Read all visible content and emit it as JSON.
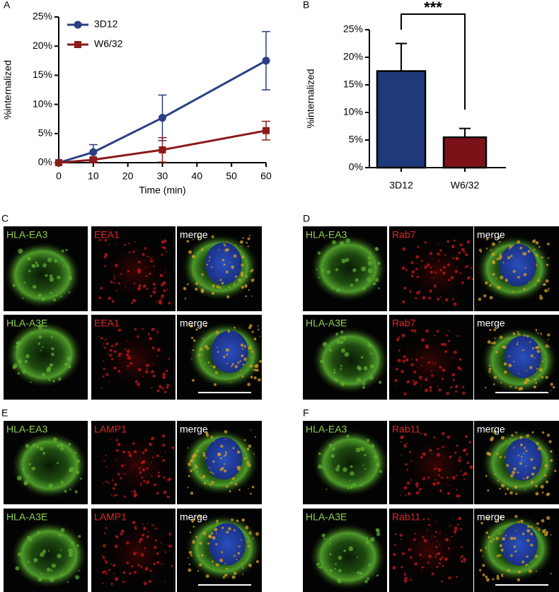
{
  "chart_data": [
    {
      "panel": "A",
      "type": "line",
      "x": [
        0,
        10,
        30,
        60
      ],
      "xlim": [
        0,
        60
      ],
      "xticks": [
        0,
        10,
        20,
        30,
        40,
        50,
        60
      ],
      "ylim": [
        0,
        25
      ],
      "yticks": [
        {
          "value": 0,
          "label": "0%"
        },
        {
          "value": 5,
          "label": "5%"
        },
        {
          "value": 10,
          "label": "10%"
        },
        {
          "value": 15,
          "label": "15%"
        },
        {
          "value": 20,
          "label": "20%"
        },
        {
          "value": 25,
          "label": "25%"
        }
      ],
      "xlabel": "Time (min)",
      "ylabel": "%internalized",
      "legend": "upper left",
      "series": [
        {
          "name": "3D12",
          "color": "#2b3f82",
          "marker": "circle",
          "values": [
            0,
            1.8,
            7.7,
            17.5
          ],
          "errors": [
            0,
            1.3,
            3.9,
            5
          ]
        },
        {
          "name": "W6/32",
          "color": "#8b1a1a",
          "marker": "square",
          "values": [
            0,
            0.5,
            2.2,
            5.5
          ],
          "errors": [
            0,
            0.3,
            2.1,
            1.6
          ]
        }
      ]
    },
    {
      "panel": "B",
      "type": "bar",
      "categories": [
        "3D12",
        "W6/32"
      ],
      "values": [
        17.5,
        5.5
      ],
      "errors": [
        5,
        1.6
      ],
      "colors": [
        "#1f3a7a",
        "#7a1218"
      ],
      "ylim": [
        0,
        25
      ],
      "yticks": [
        {
          "value": 0,
          "label": "0%"
        },
        {
          "value": 5,
          "label": "5%"
        },
        {
          "value": 10,
          "label": "10%"
        },
        {
          "value": 15,
          "label": "15%"
        },
        {
          "value": 20,
          "label": "20%"
        },
        {
          "value": 25,
          "label": "25%"
        }
      ],
      "ylabel": "%internalized",
      "annotation": "***"
    }
  ],
  "microscopy": [
    {
      "panel": "C",
      "rows": [
        [
          "HLA-EA3",
          "EEA1",
          "merge"
        ],
        [
          "HLA-A3E",
          "EEA1",
          "merge"
        ]
      ]
    },
    {
      "panel": "D",
      "rows": [
        [
          "HLA-EA3",
          "Rab7",
          "merge"
        ],
        [
          "HLA-A3E",
          "Rab7",
          "merge"
        ]
      ]
    },
    {
      "panel": "E",
      "rows": [
        [
          "HLA-EA3",
          "LAMP1",
          "merge"
        ],
        [
          "HLA-A3E",
          "LAMP1",
          "merge"
        ]
      ]
    },
    {
      "panel": "F",
      "rows": [
        [
          "HLA-EA3",
          "Rab11",
          "merge"
        ],
        [
          "HLA-A3E",
          "Rab11",
          "merge"
        ]
      ]
    }
  ]
}
